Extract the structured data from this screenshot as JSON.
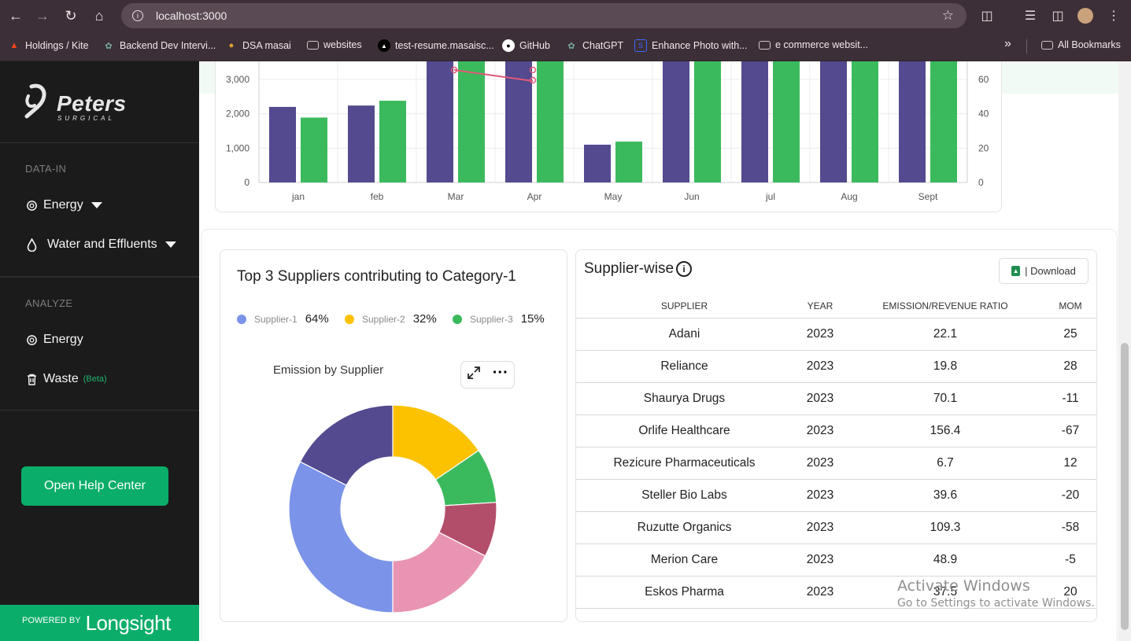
{
  "browser": {
    "url": "localhost:3000",
    "bookmarks": [
      {
        "label": "Holdings / Kite",
        "icon": "kite-icon",
        "color": "#f6461a"
      },
      {
        "label": "Backend Dev Intervi...",
        "icon": "chatgpt-icon",
        "color": "#74aa9c"
      },
      {
        "label": "DSA masai",
        "icon": "masai-icon",
        "color": "#e0a030"
      },
      {
        "label": "websites",
        "icon": "folder-icon",
        "color": "#cfc8cc"
      },
      {
        "label": "test-resume.masaisc...",
        "icon": "vercel-icon",
        "color": "#000000"
      },
      {
        "label": "GitHub",
        "icon": "github-icon",
        "color": "#ffffff"
      },
      {
        "label": "ChatGPT",
        "icon": "chatgpt-icon",
        "color": "#74aa9c"
      },
      {
        "label": "Enhance Photo with...",
        "icon": "enhance-icon",
        "color": "#3b6bff"
      },
      {
        "label": "e commerce websit...",
        "icon": "folder-icon",
        "color": "#cfc8cc"
      }
    ],
    "all_bookmarks": "All Bookmarks",
    "overflow": "»"
  },
  "sidebar": {
    "logo_name": "Peters",
    "logo_sub": "SURGICAL",
    "data_in_title": "DATA-IN",
    "data_in_items": [
      {
        "label": "Energy",
        "icon": "energy-icon"
      },
      {
        "label": "Water and Effluents",
        "icon": "water-drop-icon"
      }
    ],
    "analyze_title": "ANALYZE",
    "analyze_items": [
      {
        "label": "Energy",
        "icon": "energy-icon"
      },
      {
        "label": "Waste",
        "icon": "trash-icon",
        "badge": "(Beta)"
      }
    ],
    "help_button": "Open Help Center",
    "powered_by": "POWERED BY",
    "powered_brand": "Longsight"
  },
  "chart_data": [
    {
      "type": "bar",
      "categories": [
        "jan",
        "feb",
        "Mar",
        "Apr",
        "May",
        "Jun",
        "jul",
        "Aug",
        "Sept"
      ],
      "series": [
        {
          "values": [
            2200,
            2240,
            4200,
            4200,
            1100,
            4200,
            4200,
            4200,
            4200
          ],
          "color": "#534a8f"
        },
        {
          "values": [
            1890,
            2380,
            4200,
            4200,
            1190,
            4200,
            4200,
            4200,
            4200
          ],
          "color": "#3bba5d"
        }
      ],
      "y_ticks": [
        "0",
        "1,000",
        "2,000",
        "3,000"
      ],
      "y2_ticks": [
        "0",
        "20",
        "40",
        "60"
      ],
      "ylim": [
        0,
        3000
      ],
      "grid": true
    },
    {
      "type": "pie",
      "title": "Emission by Supplier",
      "slices": [
        {
          "value": 15.5,
          "color": "#fcc200"
        },
        {
          "value": 8.5,
          "color": "#3bba5d"
        },
        {
          "value": 8.5,
          "color": "#b34e6a"
        },
        {
          "value": 17.5,
          "color": "#e994b2"
        },
        {
          "value": 32.5,
          "color": "#7b93e8"
        },
        {
          "value": 17.5,
          "color": "#534a8f"
        }
      ],
      "donut": true
    }
  ],
  "top_suppliers": {
    "title": "Top 3 Suppliers contributing to Category-1",
    "legend": [
      {
        "name": "Supplier-1",
        "pct": "64%",
        "color": "#7b93e8"
      },
      {
        "name": "Supplier-2",
        "pct": "32%",
        "color": "#fcc200"
      },
      {
        "name": "Supplier-3",
        "pct": "15%",
        "color": "#3bba5d"
      }
    ],
    "emission_label": "Emission by Supplier"
  },
  "supplier_table": {
    "title": "Supplier-wise",
    "download_label": "| Download",
    "columns": [
      "SUPPLIER",
      "YEAR",
      "EMISSION/REVENUE RATIO",
      "MOM"
    ],
    "rows": [
      [
        "Adani",
        "2023",
        "22.1",
        "25"
      ],
      [
        "Reliance",
        "2023",
        "19.8",
        "28"
      ],
      [
        "Shaurya Drugs",
        "2023",
        "70.1",
        "-11"
      ],
      [
        "Orlife Healthcare",
        "2023",
        "156.4",
        "-67"
      ],
      [
        "Rezicure Pharmaceuticals",
        "2023",
        "6.7",
        "12"
      ],
      [
        "Steller Bio Labs",
        "2023",
        "39.6",
        "-20"
      ],
      [
        "Ruzutte Organics",
        "2023",
        "109.3",
        "-58"
      ],
      [
        "Merion Care",
        "2023",
        "48.9",
        "-5"
      ],
      [
        "Eskos Pharma",
        "2023",
        "37.5",
        "20"
      ]
    ]
  },
  "watermark": {
    "line1": "Activate Windows",
    "line2": "Go to Settings to activate Windows."
  }
}
